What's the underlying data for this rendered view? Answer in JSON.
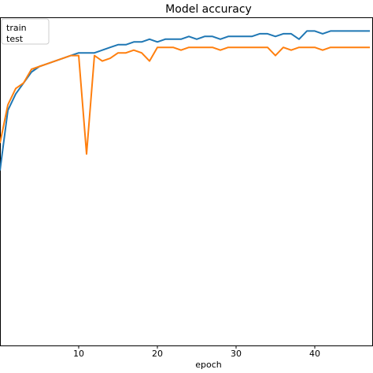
{
  "chart_data": {
    "type": "line",
    "title": "Model accuracy",
    "xlabel": "epoch",
    "ylabel": "",
    "xlim": [
      0,
      47.4
    ],
    "ylim": [
      0,
      1
    ],
    "xticks": [
      10,
      20,
      30,
      40
    ],
    "grid": false,
    "legend_position": "top-left",
    "series": [
      {
        "name": "train",
        "color": "#1f77b4",
        "x": [
          0,
          1,
          2,
          3,
          4,
          5,
          6,
          7,
          8,
          9,
          10,
          11,
          12,
          13,
          14,
          15,
          16,
          17,
          18,
          19,
          20,
          21,
          22,
          23,
          24,
          25,
          26,
          27,
          28,
          29,
          30,
          31,
          32,
          33,
          34,
          35,
          36,
          37,
          38,
          39,
          40,
          41,
          42,
          43,
          44,
          45,
          46,
          47
        ],
        "values": [
          0.72,
          0.83,
          0.86,
          0.88,
          0.9,
          0.91,
          0.915,
          0.92,
          0.925,
          0.93,
          0.935,
          0.935,
          0.935,
          0.94,
          0.945,
          0.95,
          0.95,
          0.955,
          0.955,
          0.96,
          0.955,
          0.96,
          0.96,
          0.96,
          0.965,
          0.96,
          0.965,
          0.965,
          0.96,
          0.965,
          0.965,
          0.965,
          0.965,
          0.97,
          0.97,
          0.965,
          0.97,
          0.97,
          0.96,
          0.975,
          0.975,
          0.97,
          0.975,
          0.975,
          0.975,
          0.975,
          0.975,
          0.975
        ]
      },
      {
        "name": "test",
        "color": "#ff7f0e",
        "x": [
          0,
          1,
          2,
          3,
          4,
          5,
          6,
          7,
          8,
          9,
          10,
          11,
          12,
          13,
          14,
          15,
          16,
          17,
          18,
          19,
          20,
          21,
          22,
          23,
          24,
          25,
          26,
          27,
          28,
          29,
          30,
          31,
          32,
          33,
          34,
          35,
          36,
          37,
          38,
          39,
          40,
          41,
          42,
          43,
          44,
          45,
          46,
          47
        ],
        "values": [
          0.77,
          0.84,
          0.87,
          0.88,
          0.905,
          0.91,
          0.915,
          0.92,
          0.925,
          0.93,
          0.93,
          0.75,
          0.93,
          0.92,
          0.925,
          0.935,
          0.935,
          0.94,
          0.935,
          0.92,
          0.945,
          0.945,
          0.945,
          0.94,
          0.945,
          0.945,
          0.945,
          0.945,
          0.94,
          0.945,
          0.945,
          0.945,
          0.945,
          0.945,
          0.945,
          0.93,
          0.945,
          0.94,
          0.945,
          0.945,
          0.945,
          0.94,
          0.945,
          0.945,
          0.945,
          0.945,
          0.945,
          0.945
        ]
      }
    ]
  }
}
